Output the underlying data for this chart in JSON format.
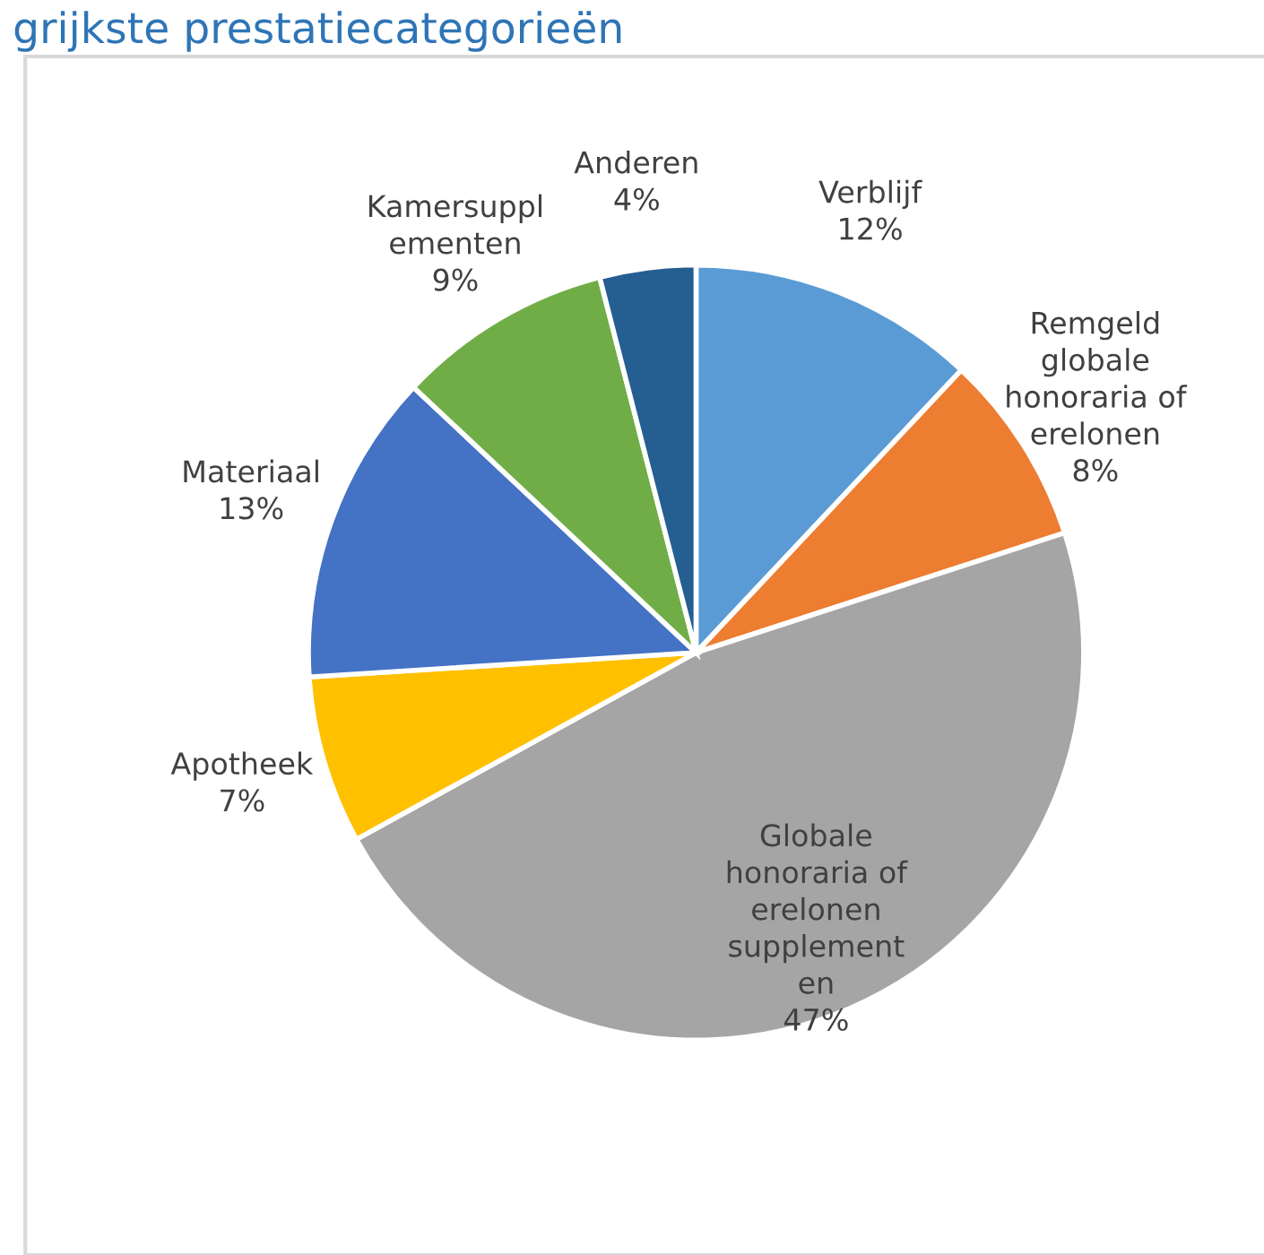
{
  "chart_data": {
    "type": "pie",
    "title": "grijkste prestatiecategorieën",
    "categories": [
      "Verblijf",
      "Remgeld\nglobale\nhonoraria of\nerelonen",
      "Globale\nhonoraria of\nerelonen\nsupplement\nen",
      "Apotheek",
      "Materiaal",
      "Kamersuppl\nementen",
      "Anderen"
    ],
    "values": [
      12,
      8,
      47,
      7,
      13,
      9,
      4
    ],
    "value_labels": [
      "12%",
      "8%",
      "47%",
      "7%",
      "13%",
      "9%",
      "4%"
    ],
    "colors": [
      "#5b9bd5",
      "#ed7d31",
      "#a5a5a5",
      "#ffc000",
      "#4472c4",
      "#70ad47",
      "#255e91"
    ],
    "legend": false
  }
}
